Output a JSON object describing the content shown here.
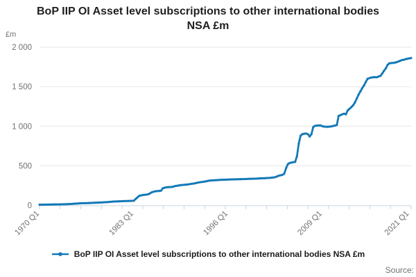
{
  "title": "BoP IIP OI Asset level subscriptions to other international bodies NSA £m",
  "y_axis_unit_label": "£m",
  "source_label": "Source:",
  "legend": {
    "series_label": "BoP IIP OI Asset level subscriptions to other international bodies NSA £m"
  },
  "colors": {
    "series": "#1379b7",
    "grid": "#e6e6e6",
    "axis": "#c7d3dc",
    "tick_text": "#707070",
    "title_text": "#1f1f1f"
  },
  "chart_data": {
    "type": "line",
    "title": "BoP IIP OI Asset level subscriptions to other international bodies NSA £m",
    "xlabel": "",
    "ylabel": "£m",
    "ylim": [
      0,
      2000
    ],
    "grid": "horizontal",
    "legend_position": "bottom",
    "frequency": "quarterly",
    "start_period": "1970 Q1",
    "end_period": "2021 Q2",
    "y_tick_values": [
      0,
      500,
      1000,
      1500,
      2000
    ],
    "y_tick_labels": [
      "0",
      "500",
      "1 000",
      "1 500",
      "2 000"
    ],
    "x_tick_labels": [
      "1970 Q1",
      "1983 Q1",
      "1996 Q1",
      "2009 Q1",
      "2021 Q1"
    ],
    "x_tick_quarter_index": [
      0,
      52,
      104,
      156,
      204
    ],
    "minor_x_tick_count": 19,
    "series": [
      {
        "name": "BoP IIP OI Asset level subscriptions to other international bodies NSA £m",
        "values": [
          8,
          8,
          9,
          9,
          10,
          10,
          10,
          11,
          11,
          11,
          12,
          12,
          13,
          13,
          14,
          15,
          16,
          17,
          18,
          20,
          22,
          23,
          25,
          26,
          27,
          27,
          28,
          29,
          30,
          31,
          32,
          33,
          34,
          35,
          36,
          38,
          39,
          40,
          42,
          44,
          46,
          48,
          49,
          50,
          51,
          52,
          53,
          53,
          54,
          55,
          56,
          57,
          58,
          80,
          100,
          120,
          125,
          130,
          133,
          136,
          140,
          152,
          165,
          172,
          178,
          180,
          182,
          185,
          215,
          222,
          228,
          230,
          231,
          232,
          238,
          245,
          248,
          252,
          255,
          258,
          260,
          262,
          265,
          268,
          272,
          275,
          280,
          285,
          290,
          293,
          297,
          300,
          305,
          310,
          313,
          315,
          316,
          318,
          319,
          321,
          322,
          323,
          324,
          325,
          326,
          327,
          327,
          328,
          329,
          330,
          330,
          331,
          332,
          332,
          333,
          334,
          335,
          336,
          336,
          337,
          338,
          340,
          341,
          342,
          343,
          344,
          346,
          347,
          349,
          352,
          356,
          365,
          375,
          380,
          385,
          400,
          470,
          520,
          535,
          540,
          545,
          550,
          620,
          780,
          880,
          900,
          905,
          908,
          900,
          870,
          900,
          990,
          1005,
          1008,
          1009,
          1010,
          1000,
          995,
          993,
          992,
          995,
          998,
          1003,
          1008,
          1015,
          1130,
          1140,
          1150,
          1158,
          1150,
          1200,
          1220,
          1240,
          1265,
          1300,
          1350,
          1400,
          1440,
          1480,
          1515,
          1560,
          1600,
          1608,
          1615,
          1618,
          1620,
          1618,
          1628,
          1635,
          1665,
          1700,
          1730,
          1775,
          1795,
          1798,
          1800,
          1803,
          1810,
          1818,
          1828,
          1836,
          1840,
          1848,
          1853,
          1858,
          1862
        ]
      }
    ]
  }
}
